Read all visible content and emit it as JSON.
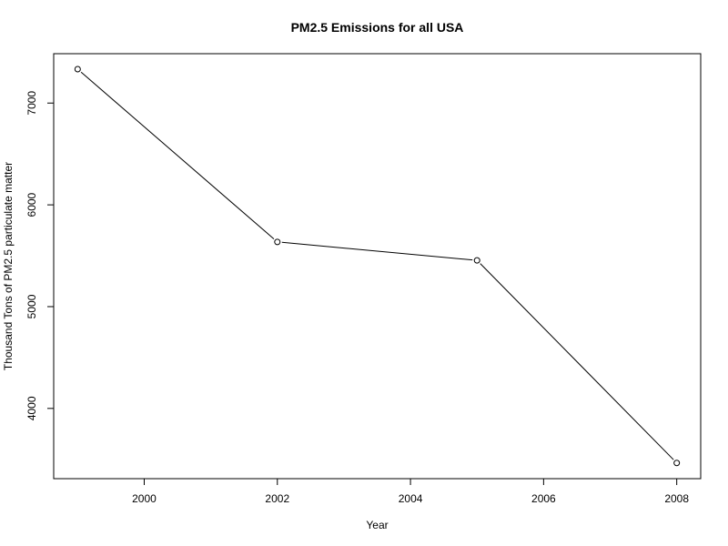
{
  "chart_data": {
    "type": "line",
    "title": "PM2.5 Emissions for all USA",
    "xlabel": "Year",
    "ylabel": "Thousand Tons of PM2.5 particulate matter",
    "x": [
      1999,
      2002,
      2005,
      2008
    ],
    "series": [
      {
        "values": [
          7332.97,
          5635.78,
          5454.7,
          3464.21
        ]
      }
    ],
    "xlim": [
      1998.64,
      2008.36
    ],
    "ylim": [
      3310,
      7485
    ],
    "xticks": [
      2000,
      2002,
      2004,
      2006,
      2008
    ],
    "yticks": [
      4000,
      5000,
      6000,
      7000
    ],
    "grid": false,
    "markers": "open-circle",
    "colors": {
      "line": "#000000",
      "marker_stroke": "#000000",
      "marker_fill": "#ffffff"
    }
  }
}
